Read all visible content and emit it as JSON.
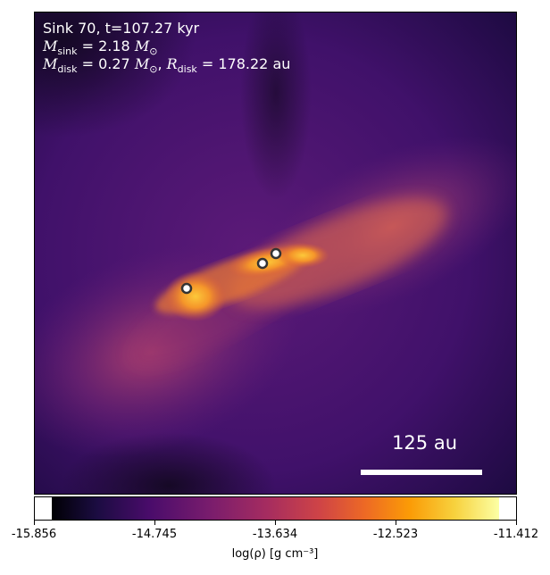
{
  "annotation": {
    "sink_line": "Sink 70, t=107.27 kyr",
    "mass_line": "M_sink = 2.18 M_⊙",
    "disk_line": "M_disk = 0.27 M_⊙, R_disk = 178.22 au"
  },
  "scale_bar": {
    "label": "125 au"
  },
  "colorbar": {
    "ticks": [
      "-15.856",
      "-14.745",
      "-13.634",
      "-12.523",
      "-11.412"
    ],
    "label": "log(ρ) [g cm⁻³]"
  },
  "colors": {
    "background_dark": "#1a0b3a",
    "background_mid": "#4a1570",
    "arm_magenta": "#a33c72",
    "disk_orange": "#f08a22",
    "disk_yellow": "#fcc83a"
  },
  "sinks_count_icon": "sink-marker-icon"
}
